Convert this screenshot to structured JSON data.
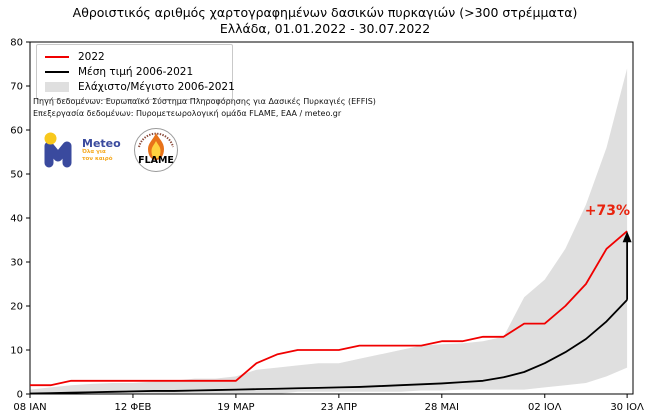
{
  "header": {
    "title": "Αθροιστικός αριθμός χαρτογραφημένων δασικών πυρκαγιών (>300 στρέμματα)",
    "subtitle": "Ελλάδα, 01.01.2022 - 30.07.2022"
  },
  "legend": {
    "items": [
      {
        "label": "2022",
        "swatch": "line",
        "color": "#f00000"
      },
      {
        "label": "Μέση τιμή 2006-2021",
        "swatch": "line",
        "color": "#000000"
      },
      {
        "label": "Ελάχιστο/Μέγιστο 2006-2021",
        "swatch": "patch",
        "color": "#dfdfdf"
      }
    ]
  },
  "credits": {
    "source": "Πηγή δεδομένων: Ευρωπαϊκό Σύστημα Πληροφόρησης για Δασικές Πυρκαγιές (EFFIS)",
    "processing": "Επεξεργασία δεδομένων: Πυρομετεωρολογική ομάδα FLAME, ΕΑΑ / meteo.gr"
  },
  "logos": {
    "meteo": {
      "name": "Meteo",
      "tagline": "Όλα για τον καιρό",
      "blue": "#3a4a9e",
      "yellow": "#f8c81c"
    },
    "flame": {
      "name": "FLAME"
    }
  },
  "annotation": {
    "label": "+73%",
    "color": "#e8230e"
  },
  "chart_data": {
    "type": "line",
    "title": "Αθροιστικός αριθμός χαρτογραφημένων δασικών πυρκαγιών (>300 στρέμματα)",
    "subtitle": "Ελλάδα, 01.01.2022 - 30.07.2022",
    "x": [
      0,
      7,
      14,
      21,
      28,
      35,
      42,
      49,
      56,
      63,
      70,
      77,
      84,
      91,
      98,
      105,
      112,
      119,
      126,
      133,
      140,
      147,
      154,
      161,
      168,
      175,
      182,
      189,
      196,
      203
    ],
    "x_domain": [
      0,
      205
    ],
    "x_tick_positions": [
      0,
      35,
      70,
      105,
      140,
      175,
      203
    ],
    "x_tick_labels": [
      "08 ΙΑΝ",
      "12 ΦΕΒ",
      "19 ΜΑΡ",
      "23 ΑΠΡ",
      "28 ΜΑΙ",
      "02 ΙΟΛ",
      "30 ΙΟΛ"
    ],
    "ylim": [
      0,
      80
    ],
    "y_ticks": [
      0,
      10,
      20,
      30,
      40,
      50,
      60,
      70,
      80
    ],
    "grid": false,
    "legend_position": "upper left",
    "series": [
      {
        "name": "2022",
        "type": "line",
        "color": "#f00000",
        "values": [
          2,
          2,
          3,
          3,
          3,
          3,
          3,
          3,
          3,
          3,
          3,
          7,
          9,
          10,
          10,
          10,
          11,
          11,
          11,
          11,
          12,
          12,
          13,
          13,
          16,
          16,
          20,
          25,
          33,
          37
        ]
      },
      {
        "name": "Μέση τιμή 2006-2021",
        "type": "line",
        "color": "#000000",
        "values": [
          0.1,
          0.2,
          0.3,
          0.4,
          0.5,
          0.6,
          0.7,
          0.7,
          0.8,
          0.9,
          1.0,
          1.1,
          1.2,
          1.3,
          1.4,
          1.5,
          1.6,
          1.8,
          2.0,
          2.2,
          2.4,
          2.7,
          3.0,
          3.8,
          5.0,
          7.0,
          9.5,
          12.5,
          16.5,
          21.4
        ]
      },
      {
        "name": "Ελάχιστο/Μέγιστο 2006-2021",
        "type": "band",
        "color": "#dfdfdf",
        "upper": [
          1,
          1.5,
          2,
          2.3,
          2.5,
          2.5,
          2.8,
          3,
          3.5,
          3.5,
          4,
          5.5,
          6,
          6.5,
          7,
          7,
          8,
          9,
          10,
          11,
          11.3,
          11.5,
          12,
          13,
          22,
          26,
          33,
          43,
          56,
          74
        ],
        "lower": [
          0,
          0,
          0,
          0,
          0,
          0,
          0,
          0,
          0,
          0,
          0,
          0,
          0,
          0.5,
          0.5,
          0.5,
          0.5,
          0.5,
          0.5,
          0.8,
          0.8,
          1,
          1,
          1,
          1,
          1.5,
          2,
          2.5,
          4,
          6
        ]
      }
    ],
    "annotation": {
      "text": "+73%",
      "x_day": 203,
      "arrow_from_value": 21.4,
      "arrow_to_value": 37
    }
  }
}
